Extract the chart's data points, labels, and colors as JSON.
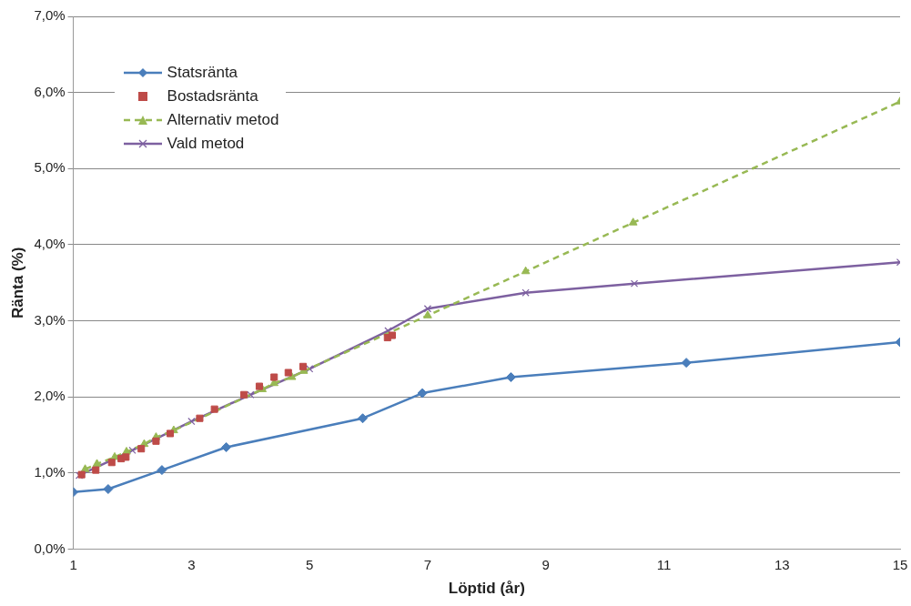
{
  "chart_data": {
    "type": "line",
    "xlabel": "Löptid (år)",
    "ylabel": "Ränta (%)",
    "xlim": [
      1,
      15
    ],
    "xticks": [
      1,
      3,
      5,
      7,
      9,
      11,
      13,
      15
    ],
    "ylim": [
      0,
      7
    ],
    "yticks": [
      {
        "value": 0,
        "label": "0,0%"
      },
      {
        "value": 1,
        "label": "1,0%"
      },
      {
        "value": 2,
        "label": "2,0%"
      },
      {
        "value": 3,
        "label": "3,0%"
      },
      {
        "value": 4,
        "label": "4,0%"
      },
      {
        "value": 5,
        "label": "5,0%"
      },
      {
        "value": 6,
        "label": "6,0%"
      },
      {
        "value": 7,
        "label": "7,0%"
      }
    ],
    "grid": "y",
    "legend": "top left",
    "series": [
      {
        "name": "Statsränta",
        "type": "line",
        "color": "#4a7ebb",
        "marker": "diamond",
        "line_style": "solid",
        "x": [
          1.0,
          1.59,
          2.5,
          3.59,
          5.9,
          6.91,
          8.41,
          11.38,
          15
        ],
        "values": [
          0.75,
          0.79,
          1.04,
          1.34,
          1.72,
          2.05,
          2.26,
          2.45,
          2.72
        ]
      },
      {
        "name": "Bostadsränta",
        "type": "scatter",
        "color": "#be4b48",
        "marker": "square",
        "x": [
          1.14,
          1.38,
          1.65,
          1.81,
          1.89,
          2.15,
          2.4,
          2.64,
          3.14,
          3.39,
          3.89,
          4.15,
          4.4,
          4.64,
          4.89,
          6.32,
          6.4
        ],
        "values": [
          0.98,
          1.04,
          1.14,
          1.19,
          1.21,
          1.32,
          1.42,
          1.52,
          1.72,
          1.84,
          2.03,
          2.14,
          2.26,
          2.32,
          2.4,
          2.78,
          2.81
        ]
      },
      {
        "name": "Alternativ metod",
        "type": "line",
        "color": "#98b954",
        "marker": "triangle",
        "line_style": "dashed",
        "x": [
          1.2,
          1.4,
          1.7,
          1.9,
          2.2,
          2.4,
          2.7,
          3.9,
          4.2,
          4.4,
          4.7,
          4.9,
          6.4,
          7.0,
          8.66,
          10.48,
          15
        ],
        "values": [
          1.05,
          1.12,
          1.21,
          1.28,
          1.38,
          1.47,
          1.56,
          null,
          2.1,
          2.18,
          2.26,
          2.34,
          null,
          3.07,
          3.65,
          4.29,
          5.88
        ]
      },
      {
        "name": "Vald metod",
        "type": "line",
        "color": "#7d60a0",
        "marker": "cross",
        "line_style": "solid",
        "x": [
          1.1,
          2.0,
          3.0,
          4.0,
          5.0,
          6.33,
          7.0,
          8.66,
          10.5,
          15
        ],
        "values": [
          0.97,
          1.3,
          1.68,
          2.03,
          2.37,
          2.87,
          3.16,
          3.37,
          3.49,
          3.77
        ]
      }
    ]
  }
}
